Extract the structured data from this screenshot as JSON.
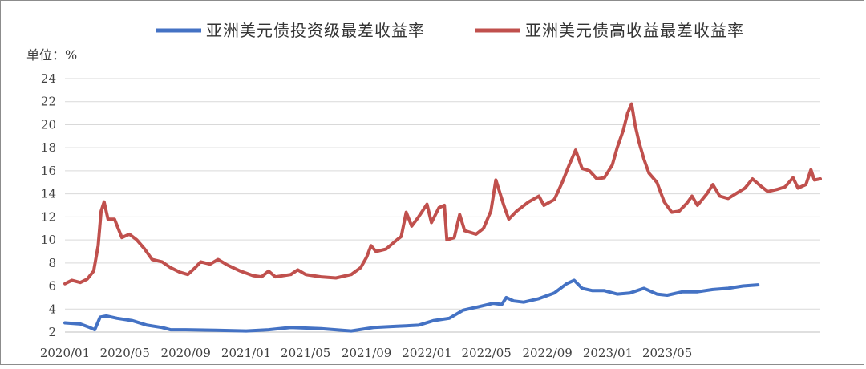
{
  "chart_data": {
    "type": "line",
    "unit_label": "单位：%",
    "ylim": [
      2,
      24
    ],
    "yticks": [
      "2",
      "4",
      "6",
      "8",
      "10",
      "12",
      "14",
      "16",
      "18",
      "20",
      "22",
      "24"
    ],
    "xticks": [
      "2020/01",
      "2020/05",
      "2020/09",
      "2021/01",
      "2021/05",
      "2021/09",
      "2022/01",
      "2022/05",
      "2022/09",
      "2023/01",
      "2023/05"
    ],
    "grid": true,
    "legend_position": "top",
    "series": [
      {
        "name": "亚洲美元债投资级最差收益率",
        "color": "#4472c4",
        "points": [
          [
            "2020-01-01",
            2.8
          ],
          [
            "2020-02-01",
            2.7
          ],
          [
            "2020-02-20",
            2.4
          ],
          [
            "2020-03-01",
            2.2
          ],
          [
            "2020-03-12",
            3.3
          ],
          [
            "2020-03-25",
            3.4
          ],
          [
            "2020-04-15",
            3.2
          ],
          [
            "2020-05-15",
            3.0
          ],
          [
            "2020-06-15",
            2.6
          ],
          [
            "2020-07-15",
            2.4
          ],
          [
            "2020-08-01",
            2.2
          ],
          [
            "2020-09-01",
            2.2
          ],
          [
            "2020-11-01",
            2.15
          ],
          [
            "2021-01-01",
            2.1
          ],
          [
            "2021-02-15",
            2.2
          ],
          [
            "2021-04-01",
            2.4
          ],
          [
            "2021-06-01",
            2.3
          ],
          [
            "2021-08-01",
            2.1
          ],
          [
            "2021-09-15",
            2.4
          ],
          [
            "2021-11-01",
            2.5
          ],
          [
            "2021-12-15",
            2.6
          ],
          [
            "2022-01-15",
            3.0
          ],
          [
            "2022-02-15",
            3.2
          ],
          [
            "2022-03-15",
            3.9
          ],
          [
            "2022-04-15",
            4.2
          ],
          [
            "2022-05-15",
            4.5
          ],
          [
            "2022-06-01",
            4.4
          ],
          [
            "2022-06-10",
            5.0
          ],
          [
            "2022-06-25",
            4.7
          ],
          [
            "2022-07-15",
            4.6
          ],
          [
            "2022-08-15",
            4.9
          ],
          [
            "2022-09-15",
            5.4
          ],
          [
            "2022-10-10",
            6.2
          ],
          [
            "2022-10-25",
            6.5
          ],
          [
            "2022-11-10",
            5.8
          ],
          [
            "2022-12-01",
            5.6
          ],
          [
            "2022-12-25",
            5.6
          ],
          [
            "2023-01-20",
            5.3
          ],
          [
            "2023-02-15",
            5.4
          ],
          [
            "2023-03-15",
            5.8
          ],
          [
            "2023-04-10",
            5.3
          ],
          [
            "2023-05-01",
            5.2
          ],
          [
            "2023-06-01",
            5.5
          ],
          [
            "2023-07-01",
            5.5
          ],
          [
            "2023-08-01",
            5.7
          ],
          [
            "2023-09-01",
            5.8
          ],
          [
            "2023-10-01",
            6.0
          ],
          [
            "2023-10-31",
            6.1
          ]
        ]
      },
      {
        "name": "亚洲美元债高收益最差收益率",
        "color": "#c0504d",
        "points": [
          [
            "2020-01-01",
            6.2
          ],
          [
            "2020-01-15",
            6.5
          ],
          [
            "2020-02-01",
            6.3
          ],
          [
            "2020-02-15",
            6.6
          ],
          [
            "2020-02-28",
            7.3
          ],
          [
            "2020-03-08",
            9.5
          ],
          [
            "2020-03-14",
            12.5
          ],
          [
            "2020-03-20",
            13.3
          ],
          [
            "2020-03-28",
            11.8
          ],
          [
            "2020-04-10",
            11.8
          ],
          [
            "2020-04-25",
            10.2
          ],
          [
            "2020-05-10",
            10.5
          ],
          [
            "2020-05-25",
            10.0
          ],
          [
            "2020-06-10",
            9.2
          ],
          [
            "2020-06-25",
            8.3
          ],
          [
            "2020-07-15",
            8.1
          ],
          [
            "2020-08-01",
            7.6
          ],
          [
            "2020-08-20",
            7.2
          ],
          [
            "2020-09-05",
            7.0
          ],
          [
            "2020-09-20",
            7.6
          ],
          [
            "2020-10-01",
            8.1
          ],
          [
            "2020-10-20",
            7.9
          ],
          [
            "2020-11-05",
            8.3
          ],
          [
            "2020-11-25",
            7.8
          ],
          [
            "2020-12-20",
            7.3
          ],
          [
            "2021-01-15",
            6.9
          ],
          [
            "2021-02-01",
            6.8
          ],
          [
            "2021-02-15",
            7.3
          ],
          [
            "2021-03-01",
            6.8
          ],
          [
            "2021-04-01",
            7.0
          ],
          [
            "2021-04-15",
            7.4
          ],
          [
            "2021-05-01",
            7.0
          ],
          [
            "2021-06-01",
            6.8
          ],
          [
            "2021-07-01",
            6.7
          ],
          [
            "2021-08-01",
            7.0
          ],
          [
            "2021-08-20",
            7.6
          ],
          [
            "2021-09-01",
            8.5
          ],
          [
            "2021-09-10",
            9.5
          ],
          [
            "2021-09-20",
            9.0
          ],
          [
            "2021-10-10",
            9.2
          ],
          [
            "2021-11-01",
            10.0
          ],
          [
            "2021-11-10",
            10.3
          ],
          [
            "2021-11-20",
            12.4
          ],
          [
            "2021-12-01",
            11.2
          ],
          [
            "2021-12-15",
            12.0
          ],
          [
            "2022-01-01",
            13.1
          ],
          [
            "2022-01-10",
            11.5
          ],
          [
            "2022-01-25",
            12.8
          ],
          [
            "2022-02-05",
            13.0
          ],
          [
            "2022-02-10",
            10.0
          ],
          [
            "2022-02-25",
            10.2
          ],
          [
            "2022-03-08",
            12.2
          ],
          [
            "2022-03-18",
            10.8
          ],
          [
            "2022-04-10",
            10.5
          ],
          [
            "2022-04-25",
            11.0
          ],
          [
            "2022-05-10",
            12.5
          ],
          [
            "2022-05-20",
            15.2
          ],
          [
            "2022-06-05",
            13.0
          ],
          [
            "2022-06-15",
            11.8
          ],
          [
            "2022-07-01",
            12.5
          ],
          [
            "2022-07-25",
            13.3
          ],
          [
            "2022-08-15",
            13.8
          ],
          [
            "2022-08-25",
            13.0
          ],
          [
            "2022-09-15",
            13.5
          ],
          [
            "2022-10-01",
            15.0
          ],
          [
            "2022-10-15",
            16.5
          ],
          [
            "2022-10-28",
            17.8
          ],
          [
            "2022-11-10",
            16.2
          ],
          [
            "2022-11-25",
            16.0
          ],
          [
            "2022-12-10",
            15.3
          ],
          [
            "2022-12-25",
            15.4
          ],
          [
            "2023-01-10",
            16.5
          ],
          [
            "2023-01-20",
            18.0
          ],
          [
            "2023-02-01",
            19.5
          ],
          [
            "2023-02-10",
            21.0
          ],
          [
            "2023-02-18",
            21.8
          ],
          [
            "2023-02-25",
            20.0
          ],
          [
            "2023-03-05",
            18.5
          ],
          [
            "2023-03-15",
            17.0
          ],
          [
            "2023-03-25",
            15.8
          ],
          [
            "2023-04-10",
            15.0
          ],
          [
            "2023-04-25",
            13.3
          ],
          [
            "2023-05-10",
            12.4
          ],
          [
            "2023-05-25",
            12.5
          ],
          [
            "2023-06-10",
            13.2
          ],
          [
            "2023-06-20",
            13.8
          ],
          [
            "2023-07-01",
            13.0
          ],
          [
            "2023-07-20",
            14.0
          ],
          [
            "2023-08-01",
            14.8
          ],
          [
            "2023-08-15",
            13.8
          ],
          [
            "2023-09-01",
            13.6
          ],
          [
            "2023-09-20",
            14.1
          ],
          [
            "2023-10-05",
            14.5
          ],
          [
            "2023-10-20",
            15.3
          ],
          [
            "2023-11-05",
            14.7
          ],
          [
            "2023-11-20",
            14.2
          ],
          [
            "2023-12-10",
            14.4
          ],
          [
            "2023-12-25",
            14.6
          ],
          [
            "2024-01-10",
            15.4
          ],
          [
            "2024-01-20",
            14.5
          ],
          [
            "2024-02-05",
            14.8
          ],
          [
            "2024-02-15",
            16.1
          ],
          [
            "2024-02-22",
            15.2
          ],
          [
            "2024-03-05",
            15.3
          ]
        ]
      }
    ]
  }
}
